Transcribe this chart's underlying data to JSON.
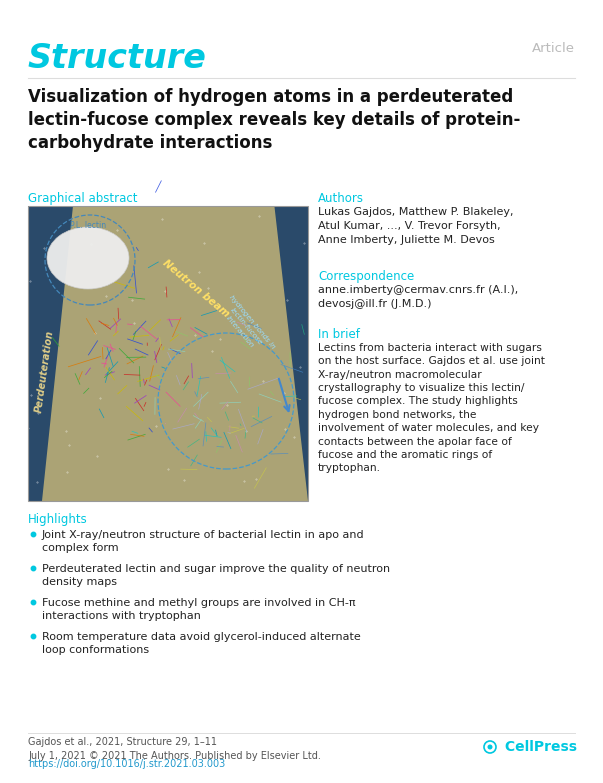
{
  "journal_title": "Structure",
  "journal_title_color": "#00c8e0",
  "article_type": "Article",
  "article_type_color": "#bbbbbb",
  "paper_title": "Visualization of hydrogen atoms in a perdeuterated\nlectin-fucose complex reveals key details of protein-\ncarbohydrate interactions",
  "graphical_abstract_label": "Graphical abstract",
  "authors_label": "Authors",
  "authors_text": "Lukas Gajdos, Matthew P. Blakeley,\nAtul Kumar, ..., V. Trevor Forsyth,\nAnne Imberty, Juliette M. Devos",
  "correspondence_label": "Correspondence",
  "correspondence_text": "anne.imberty@cermav.cnrs.fr (A.I.),\ndevosj@ill.fr (J.M.D.)",
  "in_brief_label": "In brief",
  "in_brief_text": "Lectins from bacteria interact with sugars\non the host surface. Gajdos et al. use joint\nX-ray/neutron macromolecular\ncrystallography to visualize this lectin/\nfucose complex. The study highlights\nhydrogen bond networks, the\ninvolvement of water molecules, and key\ncontacts between the apolar face of\nfucose and the aromatic rings of\ntryptophan.",
  "highlights_label": "Highlights",
  "highlights": [
    "Joint X-ray/neutron structure of bacterial lectin in apo and\ncomplex form",
    "Perdeuterated lectin and sugar improve the quality of neutron\ndensity maps",
    "Fucose methine and methyl groups are involved in CH-π\ninteractions with tryptophan",
    "Room temperature data avoid glycerol-induced alternate\nloop conformations"
  ],
  "footer_text": "Gajdos et al., 2021, Structure 29, 1–11\nJuly 1, 2021 © 2021 The Authors. Published by Elsevier Ltd.",
  "footer_doi": "https://doi.org/10.1016/j.str.2021.03.003",
  "section_color": "#00c8e0",
  "background_color": "#ffffff",
  "text_color": "#222222",
  "bullet_color": "#00c8e0",
  "cellpress_color": "#00c8e0"
}
